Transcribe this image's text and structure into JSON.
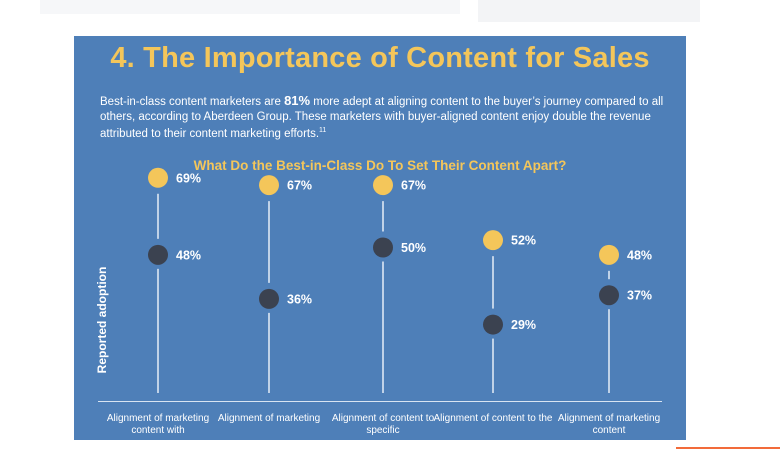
{
  "heading": "4. The Importance of Content for Sales",
  "intro": {
    "before": "Best-in-class content marketers are ",
    "highlight": "81%",
    "after": " more adept at aligning content to the buyer’s journey compared to all others, according to Aberdeen Group. These marketers with buyer-aligned content enjoy double the revenue attributed to their content marketing efforts.",
    "footnote": "11"
  },
  "chart_data": {
    "type": "dot",
    "title": "What Do the Best-in-Class Do To Set Their Content Apart?",
    "ylabel": "Reported adoption",
    "categories": [
      "Alignment of marketing content with",
      "Alignment of marketing",
      "Alignment of content to specific",
      "Alignment of content to the",
      "Alignment of marketing content"
    ],
    "series": [
      {
        "values": [
          69,
          67,
          67,
          52,
          48
        ],
        "color": "#f4c65a"
      },
      {
        "values": [
          48,
          36,
          50,
          29,
          37
        ],
        "color": "#3b4250"
      }
    ],
    "value_labels": [
      [
        "69%",
        "67%",
        "67%",
        "52%",
        "48%"
      ],
      [
        "48%",
        "36%",
        "50%",
        "29%",
        "37%"
      ]
    ],
    "ylim": [
      0,
      100
    ],
    "grid": false
  },
  "colors": {
    "panel": "#4e7fb8",
    "accent": "#f4c65a",
    "dark_dot": "#3b4250",
    "text": "#ffffff"
  }
}
